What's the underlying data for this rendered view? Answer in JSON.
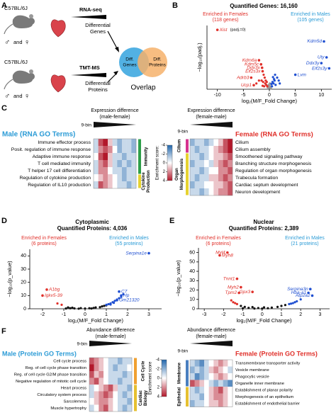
{
  "A": {
    "label": "A",
    "strain": "C57BL/6J",
    "male": "♂",
    "and": "and",
    "female": "♀",
    "rna": "RNA-seq",
    "tmt": "TMT-MS",
    "diffGenes": [
      "Differential",
      "Genes"
    ],
    "diffProteins": [
      "Differential",
      "Proteins"
    ],
    "vennGenes": [
      "Diff.",
      "Genes"
    ],
    "vennProteins": [
      "Diff.",
      "Proteins"
    ],
    "overlap": "Overlap"
  },
  "B": {
    "label": "B",
    "title": "Quantified Genes: 16,160",
    "femaleHeader": [
      "Enriched in Females",
      "(118 genes)"
    ],
    "maleHeader": [
      "Enriched in Males",
      "(105 genes)"
    ],
    "xlabel": "log₂(M/F_Fold Change)",
    "ylabel": "−log₁₀(padj.)",
    "xlim": [
      -12,
      12
    ],
    "ylim": [
      0,
      22
    ],
    "xticks": [
      -10,
      -5,
      0,
      5,
      10
    ],
    "note": "(padj.=0)",
    "neutral": {
      "color": "#999999",
      "points": [
        [
          0,
          0.5
        ],
        [
          0.2,
          1
        ],
        [
          -0.2,
          1.2
        ],
        [
          0.3,
          0.3
        ],
        [
          -0.3,
          0.6
        ],
        [
          0.1,
          2
        ],
        [
          -0.1,
          1.5
        ]
      ],
      "labels": []
    },
    "female": {
      "color": "#e0302a",
      "points": [
        [
          -1,
          1
        ],
        [
          -0.8,
          2
        ],
        [
          -1.5,
          3
        ],
        [
          -0.6,
          1.5
        ],
        [
          -1.2,
          2.5
        ],
        [
          -2,
          3
        ],
        [
          -0.9,
          4
        ],
        [
          -1.1,
          5
        ],
        [
          -0.7,
          3
        ],
        [
          -0.5,
          2.5
        ],
        [
          -1.3,
          1.2
        ],
        [
          -2.5,
          2
        ],
        [
          -0.4,
          1
        ]
      ],
      "labels": [
        {
          "text": "Xist",
          "x": -10,
          "y": 20.5
        },
        {
          "text": "Kdm6a",
          "x": -2,
          "y": 10
        },
        {
          "text": "Kdm5c",
          "x": -1.6,
          "y": 8.6
        },
        {
          "text": "Ddx3x",
          "x": -1.4,
          "y": 7.4
        },
        {
          "text": "Eif2s3x",
          "x": -1.3,
          "y": 6.2
        },
        {
          "text": "Adrb3",
          "x": -3.5,
          "y": 4
        },
        {
          "text": "Ucp1",
          "x": -3,
          "y": 1.4
        }
      ]
    },
    "male": {
      "color": "#1f4fd1",
      "points": [
        [
          0.5,
          1
        ],
        [
          0.8,
          2
        ],
        [
          1,
          3
        ],
        [
          1.2,
          1.5
        ],
        [
          0.6,
          2.5
        ],
        [
          1.5,
          4
        ],
        [
          0.9,
          3.5
        ],
        [
          2,
          2
        ],
        [
          0.4,
          1.8
        ],
        [
          1.1,
          5
        ],
        [
          0.7,
          4.2
        ],
        [
          1.8,
          3
        ]
      ],
      "labels": [
        {
          "text": "Kdm5d",
          "x": 10.5,
          "y": 16.5
        },
        {
          "text": "Uty",
          "x": 11,
          "y": 11
        },
        {
          "text": "Ddx3y",
          "x": 10,
          "y": 9
        },
        {
          "text": "Eif2s3y",
          "x": 11.5,
          "y": 7.2
        },
        {
          "text": "Lvm",
          "x": 5,
          "y": 5
        }
      ]
    }
  },
  "C": {
    "label": "C",
    "left": {
      "header": [
        "Expression difference",
        "(male-female)"
      ],
      "bins": "9-bin",
      "title": "Male (RNA GO Terms)",
      "groups": [
        {
          "label": [
            "Immunity"
          ],
          "color": "#2e9e4a",
          "terms": [
            "Immune effector process",
            "Posit. regulation of immune response",
            "Adaptive immune response",
            "T cell mediated immunity",
            "T helper 17 cell differentiation"
          ],
          "values": [
            [
              -1,
              3,
              4,
              1,
              -1,
              -2,
              -1,
              -1,
              -2
            ],
            [
              -1,
              2,
              3,
              2,
              0,
              -2,
              -1,
              -1,
              -2
            ],
            [
              0,
              3,
              4,
              1,
              -1,
              -1,
              -2,
              -1,
              -1
            ],
            [
              -1,
              2,
              3,
              1,
              -1,
              -2,
              -1,
              -2,
              -1
            ],
            [
              -1,
              2,
              2,
              0,
              -1,
              -1,
              -2,
              -1,
              -1
            ]
          ]
        },
        {
          "label": [
            "Cytokine",
            "Production"
          ],
          "color": "#e6d230",
          "terms": [
            "Regulation of cytokine production",
            "Regulation of IL10 production"
          ],
          "values": [
            [
              0,
              1,
              2,
              1,
              0,
              -1,
              -2,
              -1,
              -1
            ],
            [
              -1,
              3,
              2,
              1,
              0,
              -1,
              -1,
              -2,
              -1
            ]
          ]
        }
      ]
    },
    "right": {
      "header": [
        "Expression difference",
        "(female-male)"
      ],
      "bins": "9-bin",
      "title": "Female (RNA GO Terms)",
      "groups": [
        {
          "label": [
            "Cilium"
          ],
          "color": "#d6338f",
          "terms": [
            "Cilium",
            "Cilium assembly"
          ],
          "values": [
            [
              -2,
              -1,
              -1,
              -2,
              -1,
              0,
              1,
              3,
              4
            ],
            [
              -1,
              -2,
              -1,
              -1,
              0,
              1,
              2,
              3,
              4
            ]
          ]
        },
        {
          "label": [
            "Organ",
            "Morphogenesis"
          ],
          "color": "#e6d230",
          "terms": [
            "Smoothened signaling pathway",
            "Branching structure morphogenesis",
            "Regulation of organ morphogenesis",
            "Trabecula formation",
            "Cardiac septum development",
            "Neuron development"
          ],
          "values": [
            [
              -1,
              -1,
              -2,
              -1,
              0,
              1,
              1,
              2,
              3
            ],
            [
              -2,
              -1,
              -1,
              0,
              -1,
              1,
              2,
              3,
              2
            ],
            [
              -1,
              -1,
              -2,
              -1,
              0,
              0,
              2,
              2,
              3
            ],
            [
              -1,
              -2,
              -1,
              -1,
              1,
              1,
              2,
              3,
              2
            ],
            [
              -2,
              -1,
              -1,
              0,
              0,
              1,
              1,
              2,
              3
            ],
            [
              -1,
              -1,
              -2,
              -1,
              0,
              1,
              2,
              2,
              3
            ]
          ]
        }
      ]
    },
    "colorbar": {
      "label": "Enrichment score:",
      "ticks": [
        -4,
        -2,
        0,
        2,
        4
      ]
    }
  },
  "D": {
    "label": "D",
    "title": "Cytoplasmic",
    "subtitle": "Quantified Proteins: 4,036",
    "femaleHeader": [
      "Enriched in Females",
      "(6 proteins)"
    ],
    "maleHeader": [
      "Enriched in Males",
      "(55 proteins)"
    ],
    "xlabel": "log₂(M/F_Fold Change)",
    "ylabel": "−log₁₀(p_value)",
    "xlim": [
      -2.6,
      3.6
    ],
    "ylim": [
      0,
      45
    ],
    "xticks": [
      -2,
      -1,
      0,
      1,
      2,
      3
    ],
    "yticks": [
      0,
      10,
      20,
      30,
      40
    ],
    "neutral": {
      "color": "#111111",
      "points": [
        [
          -0.9,
          0.2
        ],
        [
          -0.7,
          0.4
        ],
        [
          -0.5,
          0.3
        ],
        [
          -0.3,
          0.1
        ],
        [
          -0.2,
          0.5
        ],
        [
          0,
          0.2
        ],
        [
          0.2,
          0.4
        ],
        [
          0.4,
          0.6
        ],
        [
          0.5,
          1
        ],
        [
          0.7,
          1.2
        ],
        [
          0.8,
          1.8
        ],
        [
          0.9,
          2.2
        ],
        [
          1,
          2.6
        ],
        [
          -0.8,
          1
        ],
        [
          -0.6,
          0.8
        ],
        [
          0.3,
          0.2
        ]
      ],
      "labels": []
    },
    "female": {
      "color": "#e0302a",
      "points": [
        [
          -1.1,
          3
        ],
        [
          -1.3,
          4
        ]
      ],
      "labels": [
        {
          "text": "A1bg",
          "x": -1.8,
          "y": 14.5
        },
        {
          "text": "Igkv5-39",
          "x": -2,
          "y": 10
        }
      ]
    },
    "male": {
      "color": "#1f4fd1",
      "points": [
        [
          1,
          3
        ],
        [
          1.1,
          3.5
        ],
        [
          1.2,
          4
        ],
        [
          1.3,
          5
        ],
        [
          1.4,
          6
        ],
        [
          1.5,
          7
        ],
        [
          1.6,
          8
        ],
        [
          1.7,
          9
        ],
        [
          1.2,
          3.2
        ],
        [
          1.35,
          4.5
        ],
        [
          1.8,
          11
        ]
      ],
      "labels": [
        {
          "text": "Serpina1e",
          "x": 3,
          "y": 42
        },
        {
          "text": "C7",
          "x": 1.6,
          "y": 13
        },
        {
          "text": "Hp",
          "x": 1.7,
          "y": 10
        },
        {
          "text": "Gm21320",
          "x": 1.5,
          "y": 6.5
        }
      ]
    }
  },
  "E": {
    "label": "E",
    "title": "Nuclear",
    "subtitle": "Quantified Proteins: 2,389",
    "femaleHeader": [
      "Enriched in Females",
      "(6 proteins)"
    ],
    "maleHeader": [
      "Enriched in Males",
      "(21 proteins)"
    ],
    "xlabel": "log₂(M/F_Fold Change)",
    "ylabel": "−log₁₀(p_value)",
    "xlim": [
      -3.3,
      3.5
    ],
    "ylim": [
      0,
      65
    ],
    "xticks": [
      -3,
      -2,
      -1,
      0,
      1,
      2,
      3
    ],
    "yticks": [
      0,
      10,
      20,
      30,
      40,
      50,
      60
    ],
    "neutral": {
      "color": "#111111",
      "points": [
        [
          -1,
          0.5
        ],
        [
          -0.7,
          1
        ],
        [
          -0.4,
          0.3
        ],
        [
          -0.2,
          0.8
        ],
        [
          0,
          0.2
        ],
        [
          0.3,
          0.6
        ],
        [
          0.5,
          1.2
        ],
        [
          0.8,
          2
        ],
        [
          1,
          3
        ],
        [
          1.2,
          4
        ],
        [
          -0.9,
          2
        ],
        [
          -1.1,
          3
        ],
        [
          0.1,
          1.5
        ],
        [
          -0.5,
          1.8
        ]
      ],
      "labels": []
    },
    "female": {
      "color": "#e0302a",
      "points": [
        [
          -1.3,
          5
        ],
        [
          -1.5,
          7
        ],
        [
          -1.4,
          6
        ],
        [
          -1.6,
          9
        ]
      ],
      "labels": [
        {
          "text": "Myl4",
          "x": -1.8,
          "y": 60
        },
        {
          "text": "Myh8",
          "x": -2.2,
          "y": 57
        },
        {
          "text": "Tnnt1",
          "x": -1.3,
          "y": 32
        },
        {
          "text": "Myh2",
          "x": -1.1,
          "y": 23
        },
        {
          "text": "Tpm2",
          "x": -1.2,
          "y": 17
        },
        {
          "text": "Gpx3",
          "x": -0.5,
          "y": 18
        }
      ]
    },
    "male": {
      "color": "#1f4fd1",
      "points": [
        [
          1.4,
          5
        ],
        [
          1.6,
          6
        ],
        [
          1.8,
          8
        ],
        [
          2,
          10
        ],
        [
          1.5,
          5.5
        ],
        [
          1.7,
          7
        ]
      ],
      "labels": [
        {
          "text": "Serpina3n",
          "x": 2.5,
          "y": 21
        },
        {
          "text": "Hba-a1",
          "x": 2.4,
          "y": 17
        },
        {
          "text": "Atp2a2",
          "x": 2.6,
          "y": 14
        }
      ]
    }
  },
  "F": {
    "label": "F",
    "left": {
      "header": [
        "Abundance difference",
        "(male-female)"
      ],
      "bins": "9-bin",
      "title": "Male (Protein GO Terms)",
      "groups": [
        {
          "label": [
            "Cell Cycle"
          ],
          "color": "#f0a030",
          "terms": [
            "Cell cycle process",
            "Reg. of cell cycle phase transition",
            "Reg. of cell cycle G2/M phase transition",
            "Negative regulation of mitotic cell cycle"
          ],
          "values": [
            [
              3,
              2,
              1,
              0,
              -1,
              -1,
              -2,
              -1,
              -1
            ],
            [
              4,
              2,
              1,
              0,
              -1,
              -2,
              -1,
              -1,
              0
            ],
            [
              3,
              1,
              2,
              0,
              -1,
              -1,
              -1,
              -2,
              -1
            ],
            [
              2,
              3,
              1,
              0,
              -1,
              -1,
              -2,
              -1,
              -1
            ]
          ]
        },
        {
          "label": [
            "Cardiac",
            "Biology"
          ],
          "color": "#e6c030",
          "terms": [
            "Heart process",
            "Circulatory system process",
            "Sarcolemma",
            "Muscle hypertrophy"
          ],
          "values": [
            [
              -1,
              0,
              1,
              2,
              3,
              1,
              -1,
              -1,
              -2
            ],
            [
              -1,
              1,
              2,
              3,
              2,
              0,
              -1,
              -2,
              -1
            ],
            [
              0,
              1,
              2,
              2,
              1,
              0,
              -1,
              -1,
              -2
            ],
            [
              -1,
              0,
              2,
              3,
              1,
              0,
              -1,
              -2,
              -1
            ]
          ]
        }
      ]
    },
    "right": {
      "header": [
        "Abundance difference",
        "(female-male)"
      ],
      "bins": "9-bin",
      "title": "Female (Protein GO Terms)",
      "groups": [
        {
          "label": [
            "Membrane"
          ],
          "color": "#4a7fc0",
          "terms": [
            "Transmembrane transporter activity",
            "Vesicle membrane",
            "Phagocytic vesicle",
            "Organelle inner membrane"
          ],
          "values": [
            [
              -1,
              -2,
              -3,
              -1,
              0,
              1,
              2,
              1,
              0
            ],
            [
              -2,
              -1,
              -2,
              -1,
              1,
              2,
              1,
              0,
              -1
            ],
            [
              -1,
              -3,
              -2,
              -1,
              0,
              1,
              2,
              1,
              0
            ],
            [
              3,
              2,
              1,
              0,
              -1,
              -2,
              -1,
              -2,
              -3
            ]
          ]
        },
        {
          "label": [
            "Epithelial"
          ],
          "color": "#e6c030",
          "terms": [
            "Establishment of planar polarity",
            "Morphogenesis of an epithelium",
            "Establishment of endothelial barrier"
          ],
          "values": [
            [
              -1,
              -2,
              -1,
              0,
              1,
              2,
              3,
              1,
              0
            ],
            [
              -1,
              -1,
              -2,
              0,
              1,
              2,
              2,
              1,
              0
            ],
            [
              -2,
              -1,
              -1,
              0,
              1,
              1,
              2,
              1,
              0
            ]
          ]
        }
      ]
    },
    "colorbar": {
      "label": "Enrichment score",
      "ticks": [
        -4,
        -2,
        0,
        2,
        4
      ]
    }
  }
}
